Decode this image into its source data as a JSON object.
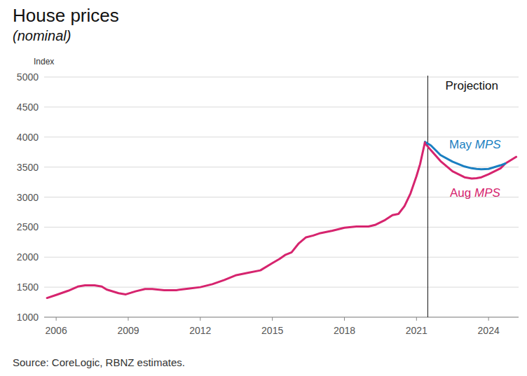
{
  "chart_data": {
    "type": "line",
    "title": "House prices",
    "subtitle": "(nominal)",
    "y_label": "Index",
    "source": "Source: CoreLogic, RBNZ estimates.",
    "annotation": {
      "text": "Projection",
      "x": 2021.47
    },
    "x": [
      2005.62,
      2006.0,
      2006.5,
      2006.9,
      2007.2,
      2007.6,
      2007.9,
      2008.1,
      2008.6,
      2008.9,
      2009.3,
      2009.7,
      2010.0,
      2010.5,
      2011.0,
      2011.5,
      2012.0,
      2012.5,
      2013.0,
      2013.5,
      2014.0,
      2014.5,
      2015.0,
      2015.3,
      2015.55,
      2015.8,
      2016.1,
      2016.4,
      2016.7,
      2017.0,
      2017.5,
      2018.0,
      2018.5,
      2019.0,
      2019.3,
      2019.7,
      2020.0,
      2020.25,
      2020.5,
      2020.75,
      2021.0,
      2021.15,
      2021.35,
      2021.6,
      2022.0,
      2022.5,
      2023.0,
      2023.3,
      2023.5,
      2023.7,
      2024.0,
      2024.5,
      2024.7,
      2025.15
    ],
    "series": [
      {
        "color": "#d6246e",
        "values": [
          1320,
          1370,
          1440,
          1510,
          1530,
          1530,
          1510,
          1460,
          1400,
          1380,
          1430,
          1470,
          1470,
          1450,
          1450,
          1475,
          1500,
          1550,
          1620,
          1700,
          1740,
          1780,
          1900,
          1970,
          2040,
          2080,
          2230,
          2330,
          2360,
          2400,
          2440,
          2490,
          2510,
          2510,
          2540,
          2620,
          2700,
          2720,
          2850,
          3060,
          3350,
          3550,
          3910,
          null,
          null,
          null,
          null,
          null,
          null,
          null,
          null,
          null,
          null,
          null
        ]
      },
      {
        "name": "May MPS",
        "color": "#1a7fc1",
        "values": [
          null,
          null,
          null,
          null,
          null,
          null,
          null,
          null,
          null,
          null,
          null,
          null,
          null,
          null,
          null,
          null,
          null,
          null,
          null,
          null,
          null,
          null,
          null,
          null,
          null,
          null,
          null,
          null,
          null,
          null,
          null,
          null,
          null,
          null,
          null,
          null,
          null,
          null,
          null,
          null,
          null,
          null,
          3920,
          3860,
          3700,
          3590,
          3510,
          3480,
          3470,
          3465,
          3470,
          3530,
          3560,
          null
        ]
      },
      {
        "name": "Aug MPS",
        "color": "#d6246e",
        "values": [
          null,
          null,
          null,
          null,
          null,
          null,
          null,
          null,
          null,
          null,
          null,
          null,
          null,
          null,
          null,
          null,
          null,
          null,
          null,
          null,
          null,
          null,
          null,
          null,
          null,
          null,
          null,
          null,
          null,
          null,
          null,
          null,
          null,
          null,
          null,
          null,
          null,
          null,
          null,
          null,
          null,
          null,
          3900,
          3780,
          3600,
          3430,
          3330,
          3310,
          3315,
          3330,
          3380,
          3480,
          3560,
          3670
        ]
      }
    ],
    "xlim": [
      2005.5,
      2025.25
    ],
    "xticks": [
      2006,
      2009,
      2012,
      2015,
      2018,
      2021,
      2024
    ],
    "ylim": [
      1000,
      5000
    ],
    "yticks": [
      1000,
      1500,
      2000,
      2500,
      3000,
      3500,
      4000,
      4500,
      5000
    ],
    "grid": true
  }
}
